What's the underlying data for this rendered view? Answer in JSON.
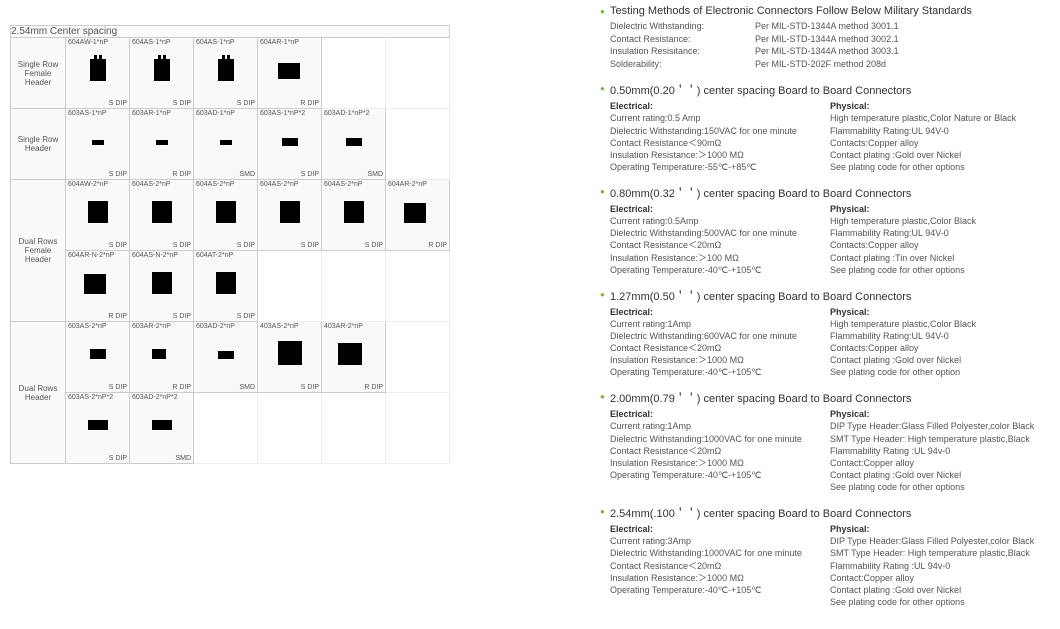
{
  "grid": {
    "title": "2.54mm Center spacing",
    "rows": [
      {
        "label": "Single Row\nFemale Header",
        "cells": [
          {
            "pn": "604AW-1*nP",
            "ft": "S DIP",
            "t": "fh"
          },
          {
            "pn": "604AS-1*nP",
            "ft": "S DIP",
            "t": "fh"
          },
          {
            "pn": "604AS-1*nP",
            "ft": "S DIP",
            "t": "fh"
          },
          {
            "pn": "604AR-1*nP",
            "ft": "R DIP",
            "t": "fhr"
          },
          null,
          null
        ]
      },
      {
        "label": "Single Row\nHeader",
        "cells": [
          {
            "pn": "603AS-1*nP",
            "ft": "S DIP",
            "t": "ph"
          },
          {
            "pn": "603AR-1*nP",
            "ft": "R DIP",
            "t": "phr"
          },
          {
            "pn": "603AD-1*nP",
            "ft": "SMD",
            "t": "phd"
          },
          {
            "pn": "603AS-1*nP*2",
            "ft": "S DIP",
            "t": "ph2"
          },
          {
            "pn": "603AD-1*nP*2",
            "ft": "SMD",
            "t": "phd2"
          },
          null
        ]
      },
      {
        "label": "Dual Rows\nFemale Header",
        "cells": [
          {
            "pn": "604AW-2*nP",
            "ft": "S DIP",
            "t": "fh2"
          },
          {
            "pn": "604AS-2*nP",
            "ft": "S DIP",
            "t": "fh2"
          },
          {
            "pn": "604AS-2*nP",
            "ft": "S DIP",
            "t": "fh2"
          },
          {
            "pn": "604AS-2*nP",
            "ft": "S DIP",
            "t": "fh2"
          },
          {
            "pn": "604AS-2*nP",
            "ft": "S DIP",
            "t": "fh2"
          },
          {
            "pn": "604AR-2*nP",
            "ft": "R DIP",
            "t": "fh2r"
          }
        ]
      },
      {
        "label": "",
        "cells": [
          {
            "pn": "604AR-N-2*nP",
            "ft": "R DIP",
            "t": "fh2r"
          },
          {
            "pn": "604AS-N-2*nP",
            "ft": "S DIP",
            "t": "fh2"
          },
          {
            "pn": "604AT-2*nP",
            "ft": "S DIP",
            "t": "fh2"
          },
          null,
          null,
          null
        ]
      },
      {
        "label": "Dual Rows\nHeader",
        "cells": [
          {
            "pn": "603AS-2*nP",
            "ft": "S DIP",
            "t": "ph2r"
          },
          {
            "pn": "603AR-2*nP",
            "ft": "R DIP",
            "t": "ph2ra"
          },
          {
            "pn": "603AD-2*nP",
            "ft": "SMD",
            "t": "phd2"
          },
          {
            "pn": "403AS-2*nP",
            "ft": "S DIP",
            "t": "shr"
          },
          {
            "pn": "403AR-2*nP",
            "ft": "R DIP",
            "t": "shrr"
          },
          null
        ]
      },
      {
        "label": "",
        "cells": [
          {
            "pn": "603AS-2*nP*2",
            "ft": "S DIP",
            "t": "ph2x"
          },
          {
            "pn": "603AD-2*nP*2",
            "ft": "SMD",
            "t": "phd2x"
          },
          null,
          null,
          null,
          null
        ]
      }
    ]
  },
  "testing": {
    "title": "Testing Methods of Electronic Connectors Follow Below Military Standards",
    "lines": [
      {
        "l": "Dielectric Withstanding:",
        "v": "Per MIL-STD-1344A method 3001.1"
      },
      {
        "l": "Contact  Resistance:",
        "v": "Per MIL-STD-1344A method 3002.1"
      },
      {
        "l": "Insulation Resisitance:",
        "v": "Per MIL-STD-1344A method 3003.1"
      },
      {
        "l": "Solderability:",
        "v": "Per MIL-STD-202F method 208d"
      }
    ]
  },
  "specs": [
    {
      "title": "0.50mm(0.20＇＇) center spacing Board to Board Connectors",
      "elec": [
        "Current rating:0.5 Amp",
        "Dielectric Withstanding:150VAC for one minute",
        "Contact Resistance＜90mΩ",
        "Insulation Resistance:＞1000 MΩ",
        "Operating  Temperature:-55℃-+85℃"
      ],
      "phys": [
        "High temperature plastic,Color Nature or Black",
        "Flammability Rating:UL 94V-0",
        "Contacts:Copper alloy",
        "Contact plating :Gold over Nickel",
        "See plating code for other options"
      ]
    },
    {
      "title": "0.80mm(0.32＇＇) center spacing Board to Board Connectors",
      "elec": [
        "Current rating:0.5Amp",
        "Dielectric Withstanding:500VAC for one minute",
        "Contact Resistance＜20mΩ",
        "Insulation Resistance:＞100 MΩ",
        "Operating  Temperature:-40℃-+105℃"
      ],
      "phys": [
        "High temperature plastic,Color Black",
        "Flammability Rating:UL 94V-0",
        "Contacts:Copper alloy",
        "Contact plating :Tin over Nickel",
        "See plating code for other options"
      ]
    },
    {
      "title": "1.27mm(0.50＇＇) center spacing Board to Board Connectors",
      "elec": [
        "Current rating:1Amp",
        "Dielectric Withstanding:600VAC for one minute",
        "Contact Resistance＜20mΩ",
        "Insulation Resistance:＞1000 MΩ",
        "Operating  Temperature:-40℃-+105℃"
      ],
      "phys": [
        "High temperature plastic,Color Black",
        "Flammability Rating:UL 94V-0",
        "Contacts:Copper alloy",
        "Contact plating :Gold  over Nickel",
        "See plating code for other option"
      ]
    },
    {
      "title": "2.00mm(0.79＇＇) center spacing Board to Board Connectors",
      "elec": [
        "Current rating:1Amp",
        "Dielectric Withstanding:1000VAC for one minute",
        "Contact Resistance＜20mΩ",
        "Insulation Resistance:＞1000 MΩ",
        "Operating  Temperature:-40℃-+105℃"
      ],
      "phys": [
        "DIP Type Header:Glass Filled Polyester,color Black",
        "SMT Type Header: High temperature plastic,Black",
        "Flammability Rating :UL 94v-0",
        "Contact:Copper alloy",
        "Contact plating :Gold over Nickel",
        "See plating code for other options"
      ]
    },
    {
      "title": "2.54mm(.100＇＇) center spacing Board to Board Connectors",
      "elec": [
        "Current rating:3Amp",
        "Dielectric Withstanding:1000VAC for one minute",
        "Contact Resistance＜20mΩ",
        "Insulation Resistance:＞1000 MΩ",
        "Operating  Temperature:-40℃-+105℃"
      ],
      "phys": [
        "DIP Type Header:Glass Filled Polyester,color Black",
        "SMT Type Header: High temperature plastic,Black",
        "Flammability Rating :UL 94v-0",
        "Contact:Copper alloy",
        "Contact plating :Gold over Nickel",
        "See plating code for other options"
      ]
    }
  ],
  "labels": {
    "elec": "Electrical:",
    "phys": "Physical:"
  }
}
